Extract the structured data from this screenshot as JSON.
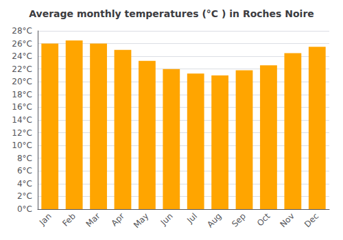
{
  "chart_data": {
    "type": "bar",
    "title": "Average monthly temperatures (°C ) in Roches Noire",
    "categories": [
      "Jan",
      "Feb",
      "Mar",
      "Apr",
      "May",
      "Jun",
      "Jul",
      "Aug",
      "Sep",
      "Oct",
      "Nov",
      "Dec"
    ],
    "values": [
      26.0,
      26.5,
      26.0,
      25.0,
      23.3,
      22.0,
      21.3,
      21.0,
      21.8,
      22.6,
      24.5,
      25.5
    ],
    "color": "#FFA500",
    "ylim": [
      0,
      28
    ],
    "yticks": [
      {
        "value": 0,
        "label": "0°C"
      },
      {
        "value": 2,
        "label": "2°C"
      },
      {
        "value": 4,
        "label": "4°C"
      },
      {
        "value": 6,
        "label": "6°C"
      },
      {
        "value": 8,
        "label": "8°C"
      },
      {
        "value": 10,
        "label": "10°C"
      },
      {
        "value": 12,
        "label": "12°C"
      },
      {
        "value": 14,
        "label": "14°C"
      },
      {
        "value": 16,
        "label": "16°C"
      },
      {
        "value": 18,
        "label": "18°C"
      },
      {
        "value": 20,
        "label": "20°C"
      },
      {
        "value": 22,
        "label": "22°C"
      },
      {
        "value": 24,
        "label": "24°C"
      },
      {
        "value": 26,
        "label": "26°C"
      },
      {
        "value": 28,
        "label": "28°C"
      }
    ],
    "grid": true
  }
}
